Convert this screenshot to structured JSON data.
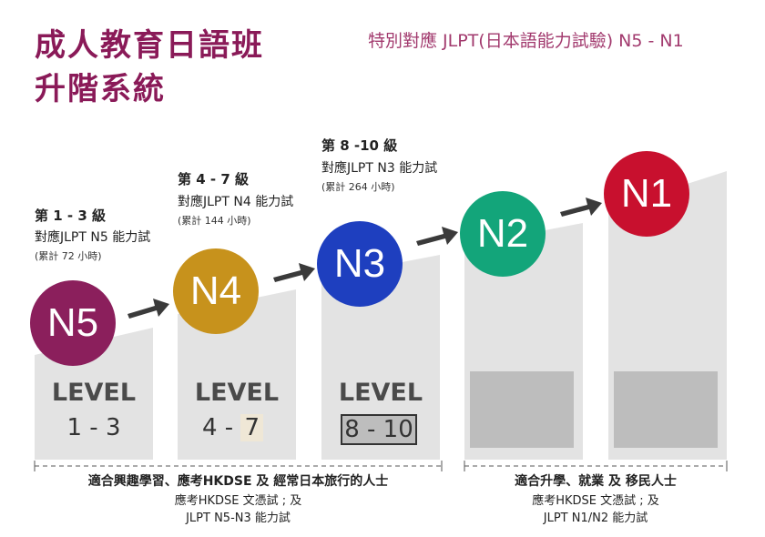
{
  "title_line1": "成人教育日語班",
  "title_line2": "升階系統",
  "subtitle": "特別對應 JLPT(日本語能力試驗) N5 - N1",
  "levels": [
    {
      "badge": "N5",
      "color": "#8b1f5c",
      "heading": "第 1 - 3 級",
      "jlpt": "對應JLPT N5 能力試",
      "hours": "(累計 72 小時)",
      "word": "LEVEL",
      "range": "1 - 3"
    },
    {
      "badge": "N4",
      "color": "#c7921c",
      "heading": "第 4 - 7 級",
      "jlpt": "對應JLPT N4 能力試",
      "hours": "(累計 144 小時)",
      "word": "LEVEL",
      "range_a": "4 -",
      "range_b": "7"
    },
    {
      "badge": "N3",
      "color": "#1e3fbf",
      "heading": "第 8 -10 級",
      "jlpt": "對應JLPT N3 能力試",
      "hours": "(累計 264 小時)",
      "word": "LEVEL",
      "range": "8 - 10"
    },
    {
      "badge": "N2",
      "color": "#13a57a"
    },
    {
      "badge": "N1",
      "color": "#c8102e"
    }
  ],
  "groups": [
    {
      "title": "適合興趣學習、應考HKDSE 及 經常日本旅行的人士",
      "line1": "應考HKDSE 文憑試 ; 及",
      "line2": "JLPT N5-N3 能力試"
    },
    {
      "title": "適合升學、就業 及 移民人士",
      "line1": "應考HKDSE 文憑試 ; 及",
      "line2": "JLPT N1/N2 能力試"
    }
  ]
}
